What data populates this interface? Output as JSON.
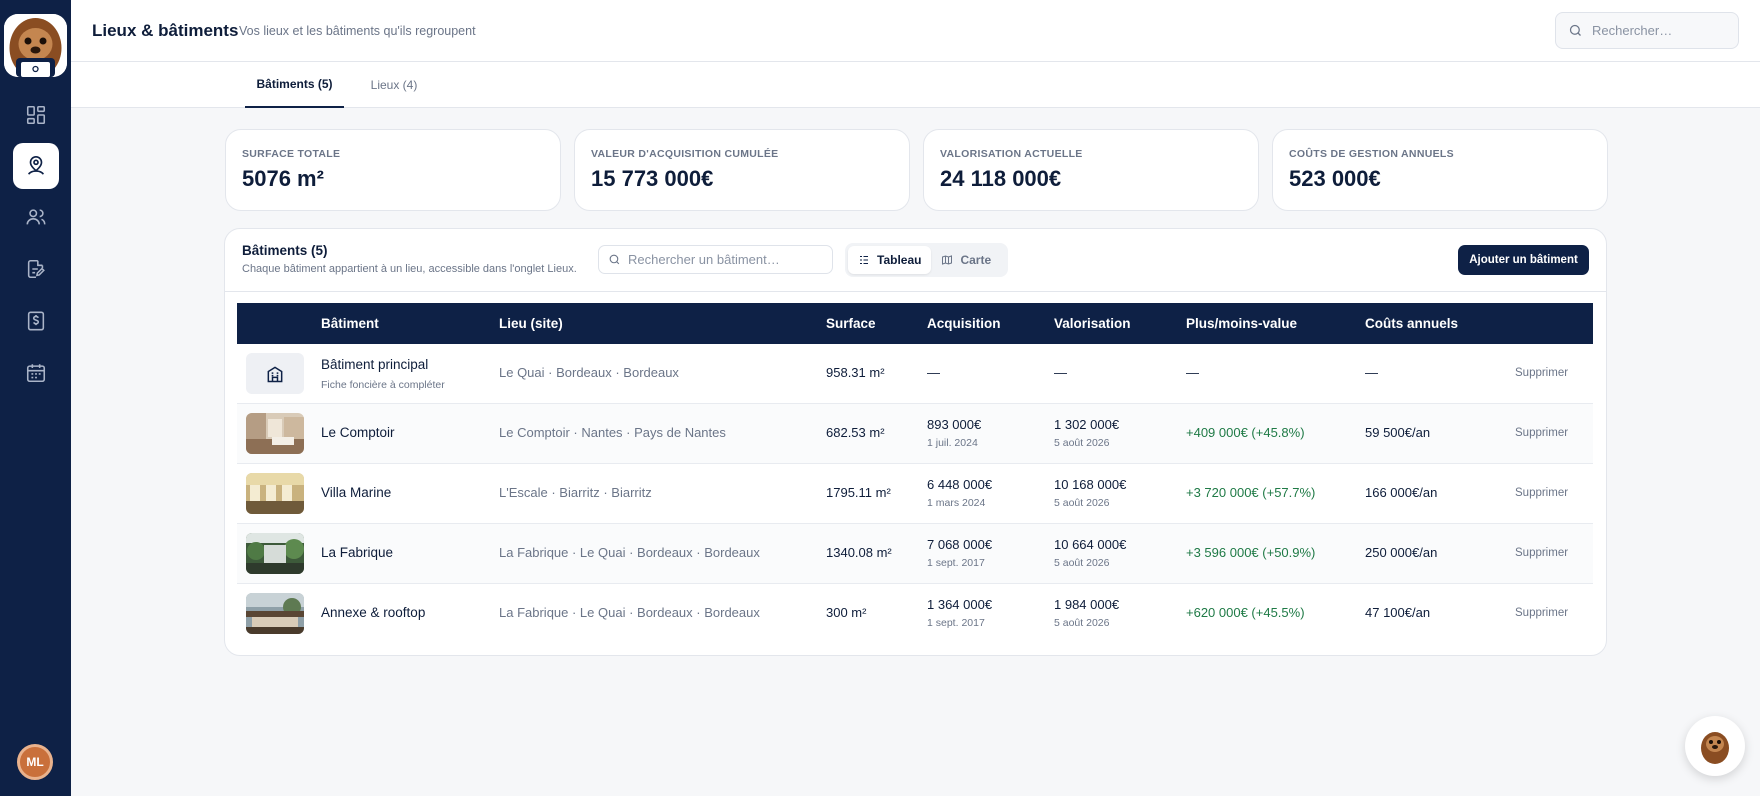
{
  "header": {
    "title": "Lieux & bâtiments",
    "subtitle": "Vos lieux et les bâtiments qu'ils regroupent",
    "search_placeholder": "Rechercher…"
  },
  "sidebar": {
    "items": [
      {
        "icon": "dashboard-icon",
        "active": false
      },
      {
        "icon": "location-person-icon",
        "active": true
      },
      {
        "icon": "users-icon",
        "active": false
      },
      {
        "icon": "document-edit-icon",
        "active": false
      },
      {
        "icon": "invoice-icon",
        "active": false
      },
      {
        "icon": "calendar-icon",
        "active": false
      }
    ],
    "user_initials": "ML"
  },
  "tabs": [
    {
      "label": "Bâtiments (5)",
      "active": true
    },
    {
      "label": "Lieux (4)",
      "active": false
    }
  ],
  "kpis": [
    {
      "label": "SURFACE TOTALE",
      "value": "5076 m²"
    },
    {
      "label": "VALEUR D'ACQUISITION CUMULÉE",
      "value": "15 773 000€"
    },
    {
      "label": "VALORISATION ACTUELLE",
      "value": "24 118 000€"
    },
    {
      "label": "COÛTS DE GESTION ANNUELS",
      "value": "523 000€"
    }
  ],
  "panel": {
    "title": "Bâtiments (5)",
    "subtitle": "Chaque bâtiment appartient à un lieu, accessible dans l'onglet Lieux.",
    "search_placeholder": "Rechercher un bâtiment…",
    "view_table": "Tableau",
    "view_map": "Carte",
    "add_button": "Ajouter un bâtiment"
  },
  "table": {
    "columns": [
      "Bâtiment",
      "Lieu (site)",
      "Surface",
      "Acquisition",
      "Valorisation",
      "Plus/moins-value",
      "Coûts annuels"
    ],
    "rows": [
      {
        "name": "Bâtiment principal",
        "note": "Fiche foncière à compléter",
        "site": "Le Quai · Bordeaux · Bordeaux",
        "surface": "958.31 m²",
        "acq": "—",
        "acq_date": "",
        "val": "—",
        "val_date": "",
        "pm": "—",
        "cost": "—",
        "delete": "Supprimer"
      },
      {
        "name": "Le Comptoir",
        "note": "",
        "site": "Le Comptoir · Nantes · Pays de Nantes",
        "surface": "682.53 m²",
        "acq": "893 000€",
        "acq_date": "1 juil. 2024",
        "val": "1 302 000€",
        "val_date": "5 août 2026",
        "pm": "+409 000€ (+45.8%)",
        "cost": "59 500€/an",
        "delete": "Supprimer"
      },
      {
        "name": "Villa Marine",
        "note": "",
        "site": "L'Escale · Biarritz · Biarritz",
        "surface": "1795.11 m²",
        "acq": "6 448 000€",
        "acq_date": "1 mars 2024",
        "val": "10 168 000€",
        "val_date": "5 août 2026",
        "pm": "+3 720 000€ (+57.7%)",
        "cost": "166 000€/an",
        "delete": "Supprimer"
      },
      {
        "name": "La Fabrique",
        "note": "",
        "site": "La Fabrique · Le Quai · Bordeaux · Bordeaux",
        "surface": "1340.08 m²",
        "acq": "7 068 000€",
        "acq_date": "1 sept. 2017",
        "val": "10 664 000€",
        "val_date": "5 août 2026",
        "pm": "+3 596 000€ (+50.9%)",
        "cost": "250 000€/an",
        "delete": "Supprimer"
      },
      {
        "name": "Annexe & rooftop",
        "note": "",
        "site": "La Fabrique · Le Quai · Bordeaux · Bordeaux",
        "surface": "300 m²",
        "acq": "1 364 000€",
        "acq_date": "1 sept. 2017",
        "val": "1 984 000€",
        "val_date": "5 août 2026",
        "pm": "+620 000€ (+45.5%)",
        "cost": "47 100€/an",
        "delete": "Supprimer"
      }
    ]
  },
  "colors": {
    "navy": "#0e2146",
    "positive": "#1f7a46",
    "muted": "#6b7588"
  }
}
